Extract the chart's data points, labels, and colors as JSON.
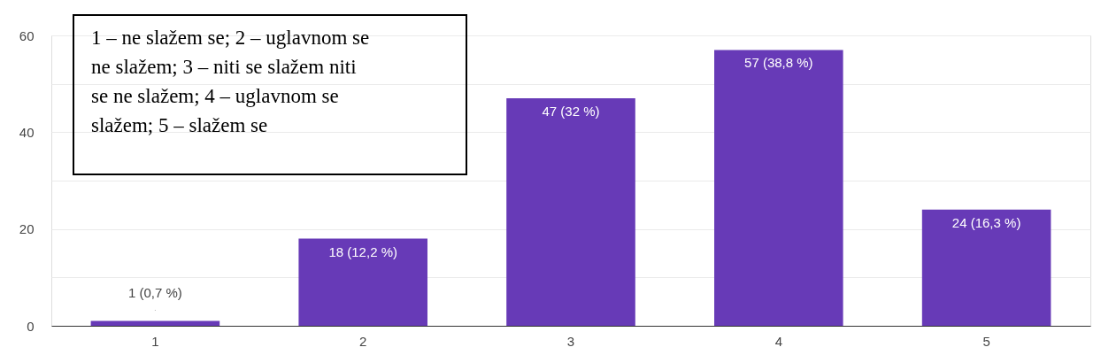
{
  "chart_data": {
    "type": "bar",
    "categories": [
      "1",
      "2",
      "3",
      "4",
      "5"
    ],
    "values": [
      1,
      18,
      47,
      57,
      24
    ],
    "color": "#673ab7",
    "value_labels": [
      "1 (0,7 %)",
      "18 (12,2 %)",
      "47 (32 %)",
      "57 (38,8 %)",
      "24 (16,3 %)"
    ],
    "ylim": [
      0,
      60
    ],
    "yticks": [
      0,
      {
        "value": 10,
        "label": null
      },
      20,
      {
        "value": 30,
        "label": null
      },
      40,
      {
        "value": 50,
        "label": null
      },
      60
    ],
    "grid": "y",
    "annotations": [
      "1 – ne slažem se; 2 – uglavnom se ne slažem; 3 – niti se slažem niti se ne slažem; 4 –  uglavnom se slažem; 5 – slažem se"
    ]
  }
}
